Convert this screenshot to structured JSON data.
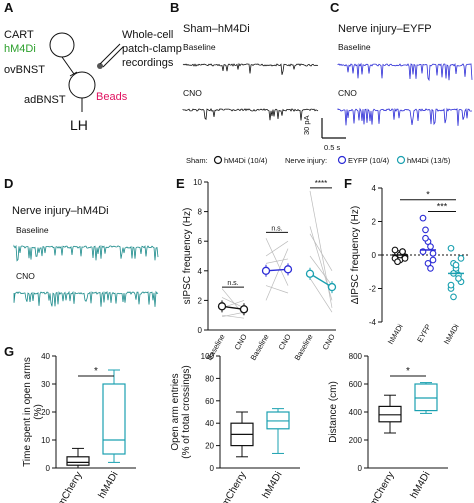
{
  "panels": {
    "A": {
      "letter": "A",
      "cart": "CART",
      "hm4di": "hM4Di",
      "ovbnst": "ovBNST",
      "adbnst": "adBNST",
      "beads": "Beads",
      "lh": "LH",
      "patch_line1": "Whole-cell",
      "patch_line2": "patch-clamp",
      "patch_line3": "recordings",
      "colors": {
        "hm4di": "#2ca02c",
        "beads": "#e0115f"
      }
    },
    "B": {
      "letter": "B",
      "title": "Sham–hM4Di",
      "baseline": "Baseline",
      "cno": "CNO",
      "trace_color": "#111111"
    },
    "C": {
      "letter": "C",
      "title": "Nerve injury–EYFP",
      "baseline": "Baseline",
      "cno": "CNO",
      "trace_color": "#2b2bd6"
    },
    "scalebar": {
      "amp": "30 pA",
      "time": "0.5 s"
    },
    "D": {
      "letter": "D",
      "title": "Nerve injury–hM4Di",
      "baseline": "Baseline",
      "cno": "CNO",
      "trace_color": "#1a8a8a"
    },
    "legend": {
      "sham_label": "Sham:",
      "sham_item": "hM4Di (10/4)",
      "injury_label": "Nerve injury:",
      "injury_item1": "EYFP (10/4)",
      "injury_item2": "hM4Di (13/5)"
    },
    "E": {
      "letter": "E",
      "ns1": "n.s.",
      "ns2": "n.s.",
      "stars": "****"
    },
    "F": {
      "letter": "F",
      "star1": "*",
      "star2": "***"
    },
    "G": {
      "letter": "G",
      "star1": "*",
      "star3": "*"
    }
  },
  "chart_data": [
    {
      "type": "line",
      "panel": "E",
      "ylabel": "sIPSC frequency (Hz)",
      "ylim": [
        0,
        10
      ],
      "yticks": [
        "0",
        "2",
        "4",
        "6",
        "8",
        "10"
      ],
      "categories": [
        "Baseline",
        "CNO",
        "Baseline",
        "CNO",
        "Baseline",
        "CNO"
      ],
      "series": [
        {
          "name": "hM4Di (10/4)",
          "x": [
            0,
            1
          ],
          "values": [
            1.6,
            1.4
          ]
        },
        {
          "name": "EYFP (10/4)",
          "x": [
            2,
            3
          ],
          "values": [
            4.0,
            4.1
          ]
        },
        {
          "name": "hM4Di (13/5)",
          "x": [
            4,
            5
          ],
          "values": [
            3.8,
            2.9
          ]
        }
      ]
    },
    {
      "type": "scatter",
      "panel": "F",
      "ylabel": "ΔIPSC frequency (Hz)",
      "ylim": [
        -4,
        4
      ],
      "yticks": [
        "-4",
        "-2",
        "0",
        "2",
        "4"
      ],
      "categories": [
        "hM4Di",
        "EYFP",
        "hM4Di"
      ],
      "means": [
        0.0,
        0.3,
        -1.1
      ]
    },
    {
      "type": "box",
      "panel": "G1",
      "ylabel": "Time spent in open arms (%)",
      "ylim": [
        0,
        40
      ],
      "yticks": [
        "0",
        "10",
        "20",
        "30",
        "40"
      ],
      "categories": [
        "mCherry",
        "hM4Di"
      ],
      "boxes": [
        {
          "min": 0,
          "q1": 1,
          "median": 2,
          "q3": 4,
          "max": 7
        },
        {
          "min": 2,
          "q1": 5,
          "median": 10,
          "q3": 30,
          "max": 35
        }
      ]
    },
    {
      "type": "box",
      "panel": "G2",
      "ylabel": "Open arm entries (% of total crossings)",
      "ylim": [
        0,
        100
      ],
      "yticks": [
        "0",
        "20",
        "40",
        "60",
        "80",
        "100"
      ],
      "categories": [
        "mCherry",
        "hM4Di"
      ],
      "boxes": [
        {
          "min": 10,
          "q1": 20,
          "median": 30,
          "q3": 40,
          "max": 50
        },
        {
          "min": 13,
          "q1": 35,
          "median": 42,
          "q3": 50,
          "max": 53
        }
      ]
    },
    {
      "type": "box",
      "panel": "G3",
      "ylabel": "Distance (cm)",
      "ylim": [
        0,
        800
      ],
      "yticks": [
        "0",
        "200",
        "400",
        "600",
        "800"
      ],
      "categories": [
        "mCherry",
        "hM4Di"
      ],
      "boxes": [
        {
          "min": 250,
          "q1": 330,
          "median": 380,
          "q3": 440,
          "max": 520
        },
        {
          "min": 390,
          "q1": 410,
          "median": 500,
          "q3": 600,
          "max": 610
        }
      ]
    }
  ]
}
